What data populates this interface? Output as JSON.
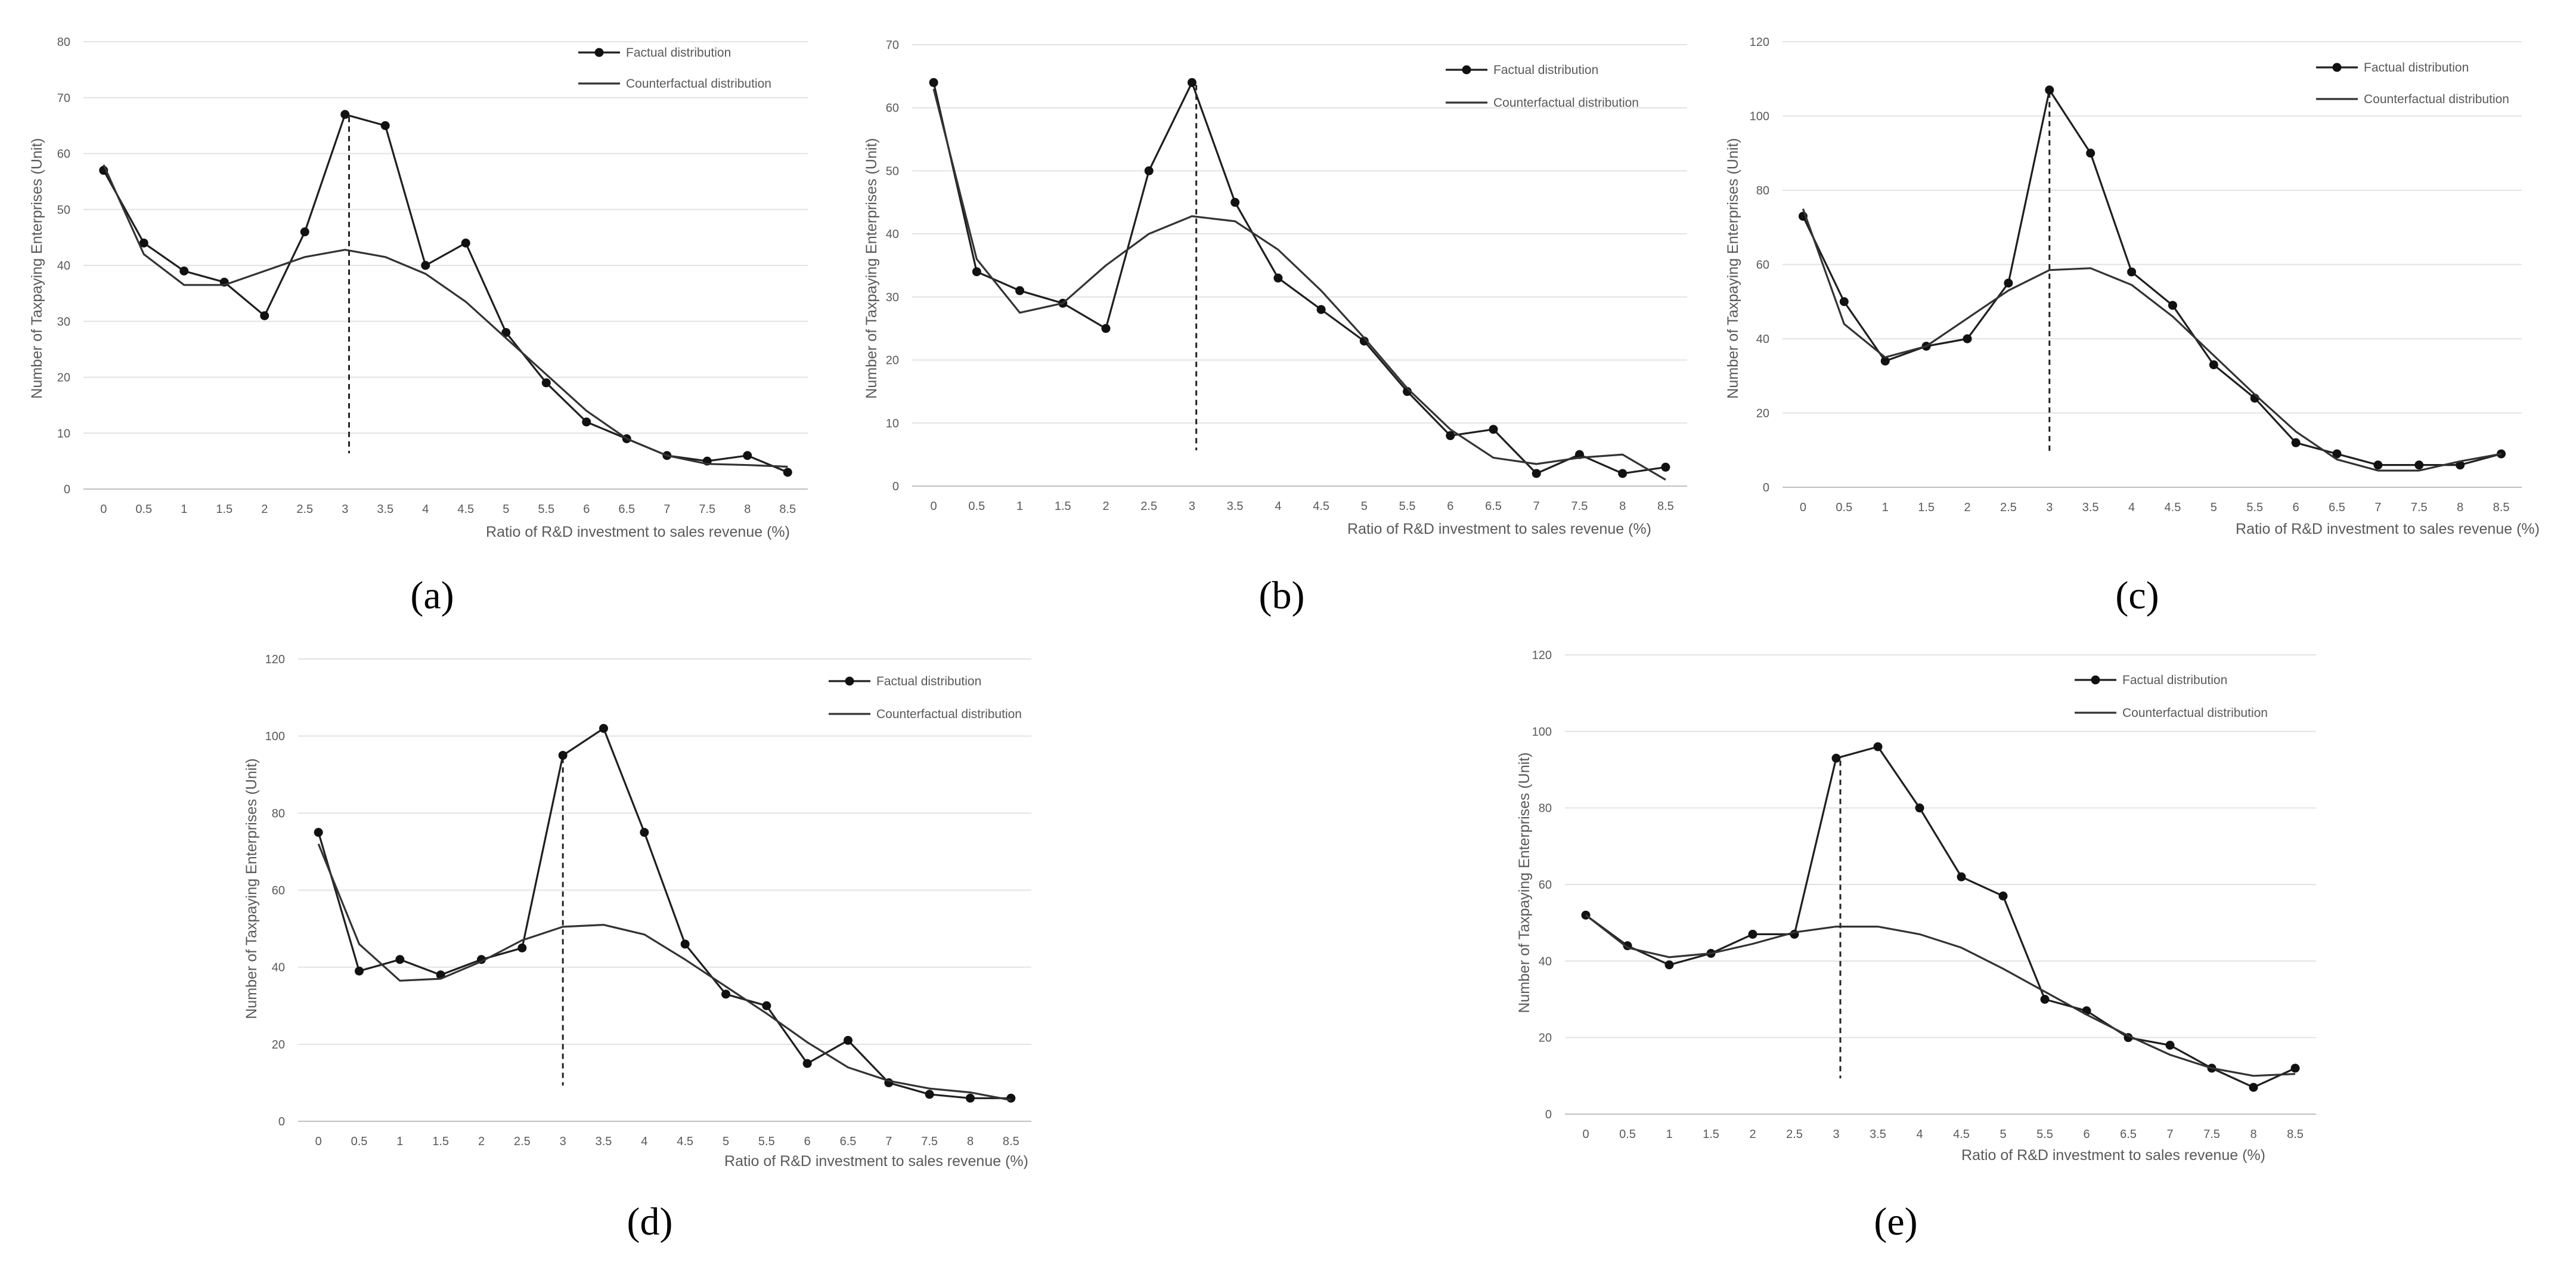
{
  "legend": {
    "factual": "Factual distribution",
    "counterfactual": "Counterfactual distribution"
  },
  "chart_data": [
    {
      "type": "line",
      "panel_label": "(a)",
      "xlabel": "Ratio of R&D investment to sales revenue (%)",
      "ylabel": "Number of Taxpaying Enterprises (Unit)",
      "x": [
        "0",
        "0.5",
        "1",
        "1.5",
        "2",
        "2.5",
        "3",
        "3.5",
        "4",
        "4.5",
        "5",
        "5.5",
        "6",
        "6.5",
        "7",
        "7.5",
        "8",
        "8.5"
      ],
      "ylim": [
        0,
        80
      ],
      "yticks": [
        0,
        10,
        20,
        30,
        40,
        50,
        60,
        70,
        80
      ],
      "threshold": 3.05,
      "grid": true,
      "legend_position": "top-right",
      "series": [
        {
          "name": "Factual distribution",
          "marker": "circle",
          "values": [
            57,
            44,
            39,
            37,
            31,
            46,
            67,
            65,
            40,
            44,
            28,
            19,
            12,
            9,
            6,
            5,
            6,
            3
          ]
        },
        {
          "name": "Counterfactual distribution",
          "marker": "none",
          "values": [
            58,
            42,
            36.5,
            36.5,
            39,
            41.5,
            42.8,
            41.5,
            38.5,
            33.5,
            27,
            20.5,
            14,
            9,
            6,
            4.5,
            4.3,
            4
          ]
        }
      ]
    },
    {
      "type": "line",
      "panel_label": "(b)",
      "xlabel": "Ratio of R&D investment to sales revenue (%)",
      "ylabel": "Number of Taxpaying Enterprises (Unit)",
      "x": [
        "0",
        "0.5",
        "1",
        "1.5",
        "2",
        "2.5",
        "3",
        "3.5",
        "4",
        "4.5",
        "5",
        "5.5",
        "6",
        "6.5",
        "7",
        "7.5",
        "8",
        "8.5"
      ],
      "ylim": [
        0,
        70
      ],
      "yticks": [
        0,
        10,
        20,
        30,
        40,
        50,
        60,
        70
      ],
      "threshold": 3.05,
      "grid": true,
      "legend_position": "top-right",
      "series": [
        {
          "name": "Factual distribution",
          "marker": "circle",
          "values": [
            64,
            34,
            31,
            29,
            25,
            50,
            64,
            45,
            33,
            28,
            23,
            15,
            8,
            9,
            2,
            5,
            2,
            3
          ]
        },
        {
          "name": "Counterfactual distribution",
          "marker": "none",
          "values": [
            63,
            36,
            27.5,
            29,
            35,
            40,
            42.8,
            42,
            37.5,
            31,
            23.5,
            15.5,
            9,
            4.5,
            3.5,
            4.5,
            5,
            1
          ]
        }
      ]
    },
    {
      "type": "line",
      "panel_label": "(c)",
      "xlabel": "Ratio of R&D investment to sales revenue (%)",
      "ylabel": "Number of Taxpaying Enterprises (Unit)",
      "x": [
        "0",
        "0.5",
        "1",
        "1.5",
        "2",
        "2.5",
        "3",
        "3.5",
        "4",
        "4.5",
        "5",
        "5.5",
        "6",
        "6.5",
        "7",
        "7.5",
        "8",
        "8.5"
      ],
      "ylim": [
        0,
        120
      ],
      "yticks": [
        0,
        20,
        40,
        60,
        80,
        100,
        120
      ],
      "threshold": 3.0,
      "grid": true,
      "legend_position": "top-right",
      "series": [
        {
          "name": "Factual distribution",
          "marker": "circle",
          "values": [
            73,
            50,
            34,
            38,
            40,
            55,
            107,
            90,
            58,
            49,
            33,
            24,
            12,
            9,
            6,
            6,
            6,
            9
          ]
        },
        {
          "name": "Counterfactual distribution",
          "marker": "none",
          "values": [
            75,
            44,
            35,
            38,
            45.5,
            53,
            58.5,
            59,
            54.5,
            46,
            35.5,
            25,
            15,
            7.5,
            4.5,
            4.5,
            7,
            9
          ]
        }
      ]
    },
    {
      "type": "line",
      "panel_label": "(d)",
      "xlabel": "Ratio of R&D investment to sales revenue (%)",
      "ylabel": "Number of Taxpaying Enterprises (Unit)",
      "x": [
        "0",
        "0.5",
        "1",
        "1.5",
        "2",
        "2.5",
        "3",
        "3.5",
        "4",
        "4.5",
        "5",
        "5.5",
        "6",
        "6.5",
        "7",
        "7.5",
        "8",
        "8.5"
      ],
      "ylim": [
        0,
        120
      ],
      "yticks": [
        0,
        20,
        40,
        60,
        80,
        100,
        120
      ],
      "threshold": 3.0,
      "grid": true,
      "legend_position": "top-right",
      "series": [
        {
          "name": "Factual distribution",
          "marker": "circle",
          "values": [
            75,
            39,
            42,
            38,
            42,
            45,
            95,
            102,
            75,
            46,
            33,
            30,
            15,
            21,
            10,
            7,
            6,
            6
          ]
        },
        {
          "name": "Counterfactual distribution",
          "marker": "none",
          "values": [
            72,
            46,
            36.5,
            37,
            41.5,
            47,
            50.5,
            51,
            48.5,
            42,
            35,
            28,
            20.5,
            14,
            10.5,
            8.5,
            7.5,
            5.5
          ]
        }
      ]
    },
    {
      "type": "line",
      "panel_label": "(e)",
      "xlabel": "Ratio of R&D investment to sales revenue (%)",
      "ylabel": "Number of Taxpaying Enterprises (Unit)",
      "x": [
        "0",
        "0.5",
        "1",
        "1.5",
        "2",
        "2.5",
        "3",
        "3.5",
        "4",
        "4.5",
        "5",
        "5.5",
        "6",
        "6.5",
        "7",
        "7.5",
        "8",
        "8.5"
      ],
      "ylim": [
        0,
        120
      ],
      "yticks": [
        0,
        20,
        40,
        60,
        80,
        100,
        120
      ],
      "threshold": 3.05,
      "grid": true,
      "legend_position": "top-right",
      "series": [
        {
          "name": "Factual distribution",
          "marker": "circle",
          "values": [
            52,
            44,
            39,
            42,
            47,
            47,
            93,
            96,
            80,
            62,
            57,
            30,
            27,
            20,
            18,
            12,
            7,
            12
          ]
        },
        {
          "name": "Counterfactual distribution",
          "marker": "none",
          "values": [
            52,
            43.5,
            41,
            42,
            44.5,
            47.5,
            49,
            49,
            47,
            43.5,
            38,
            32,
            26,
            20.5,
            15.5,
            12,
            10,
            10.5
          ]
        }
      ]
    }
  ]
}
